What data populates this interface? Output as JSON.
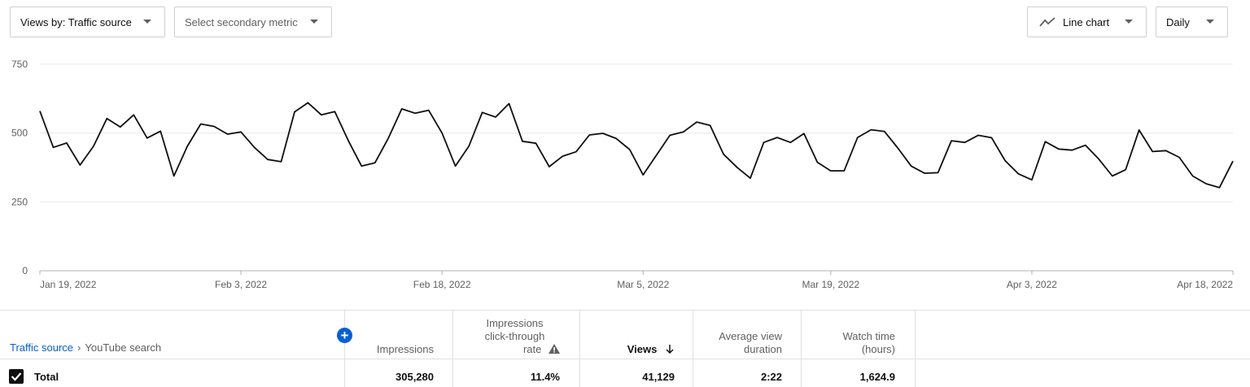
{
  "controls": {
    "primary_metric": "Views by: Traffic source",
    "secondary_metric": "Select secondary metric",
    "chart_type": "Line chart",
    "period": "Daily"
  },
  "chart_data": {
    "type": "line",
    "yticks": [
      0,
      250,
      500,
      750
    ],
    "ylim": [
      0,
      750
    ],
    "xtick_labels": [
      "Jan 19, 2022",
      "Feb 3, 2022",
      "Feb 18, 2022",
      "Mar 5, 2022",
      "Mar 19, 2022",
      "Apr 3, 2022",
      "Apr 18, 2022"
    ],
    "xtick_index": [
      0,
      15,
      30,
      45,
      59,
      74,
      89
    ],
    "series": [
      {
        "values": [
          580,
          448,
          464,
          384,
          452,
          553,
          522,
          566,
          482,
          507,
          344,
          452,
          533,
          524,
          496,
          504,
          448,
          404,
          396,
          577,
          610,
          566,
          578,
          473,
          380,
          392,
          482,
          588,
          572,
          583,
          500,
          380,
          452,
          575,
          558,
          607,
          470,
          463,
          378,
          416,
          432,
          493,
          499,
          480,
          440,
          348,
          420,
          492,
          504,
          540,
          528,
          423,
          376,
          336,
          466,
          484,
          466,
          498,
          394,
          363,
          363,
          484,
          512,
          506,
          446,
          380,
          354,
          356,
          472,
          466,
          492,
          483,
          400,
          352,
          330,
          469,
          442,
          438,
          456,
          405,
          344,
          367,
          511,
          433,
          436,
          412,
          344,
          316,
          302,
          398
        ]
      }
    ]
  },
  "table": {
    "breadcrumb_root": "Traffic source",
    "breadcrumb_sep": "›",
    "breadcrumb_current": "YouTube search",
    "add_button": "+",
    "headers": {
      "impressions": "Impressions",
      "ctr_line1": "Impressions",
      "ctr_line2": "click-through",
      "ctr_line3": "rate",
      "views": "Views",
      "avd_line1": "Average view",
      "avd_line2": "duration",
      "watch_line1": "Watch time",
      "watch_line2": "(hours)"
    },
    "total": {
      "label": "Total",
      "impressions": "305,280",
      "ctr": "11.4%",
      "views": "41,129",
      "avd": "2:22",
      "watch_time": "1,624.9"
    }
  }
}
